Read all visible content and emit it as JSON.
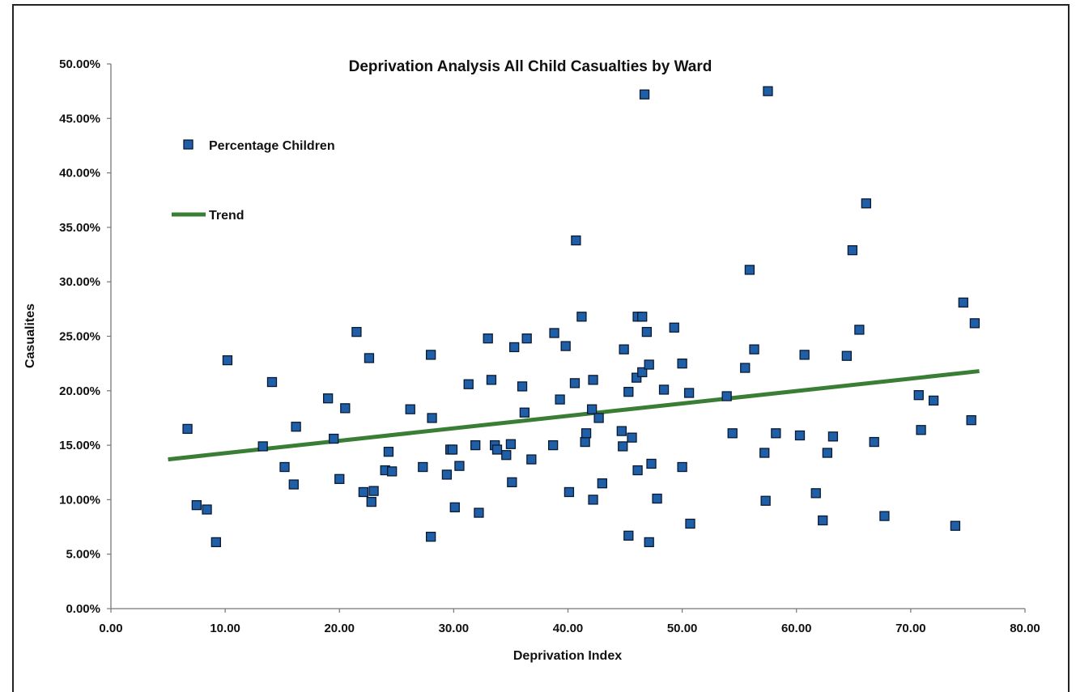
{
  "chart_data": {
    "type": "scatter",
    "title": "Deprivation Analysis All Child Casualties by Ward",
    "xlabel": "Deprivation Index",
    "ylabel": "Casualites",
    "xlim": [
      0,
      80
    ],
    "ylim": [
      0,
      0.5
    ],
    "x_ticks": [
      "0.00",
      "10.00",
      "20.00",
      "30.00",
      "40.00",
      "50.00",
      "60.00",
      "70.00",
      "80.00"
    ],
    "y_ticks": [
      "0.00%",
      "5.00%",
      "10.00%",
      "15.00%",
      "20.00%",
      "25.00%",
      "30.00%",
      "35.00%",
      "40.00%",
      "45.00%",
      "50.00%"
    ],
    "grid": false,
    "legend_position": "top-left",
    "colors": {
      "points": "#1f5fa8",
      "point_border": "#0a1a33",
      "trend": "#3a7d35"
    },
    "series": [
      {
        "name": "Percentage Children",
        "kind": "points",
        "points": [
          [
            6.7,
            0.165
          ],
          [
            7.5,
            0.095
          ],
          [
            8.4,
            0.091
          ],
          [
            9.2,
            0.061
          ],
          [
            10.2,
            0.228
          ],
          [
            13.3,
            0.149
          ],
          [
            14.1,
            0.208
          ],
          [
            15.2,
            0.13
          ],
          [
            16.0,
            0.114
          ],
          [
            16.2,
            0.167
          ],
          [
            19.0,
            0.193
          ],
          [
            19.5,
            0.156
          ],
          [
            20.0,
            0.119
          ],
          [
            20.5,
            0.184
          ],
          [
            21.5,
            0.254
          ],
          [
            22.1,
            0.107
          ],
          [
            22.6,
            0.23
          ],
          [
            22.8,
            0.098
          ],
          [
            23.0,
            0.108
          ],
          [
            24.0,
            0.127
          ],
          [
            24.3,
            0.144
          ],
          [
            24.6,
            0.126
          ],
          [
            26.2,
            0.183
          ],
          [
            27.3,
            0.13
          ],
          [
            28.0,
            0.233
          ],
          [
            28.1,
            0.175
          ],
          [
            28.0,
            0.066
          ],
          [
            29.4,
            0.123
          ],
          [
            29.7,
            0.146
          ],
          [
            29.9,
            0.146
          ],
          [
            30.1,
            0.093
          ],
          [
            30.5,
            0.131
          ],
          [
            31.3,
            0.206
          ],
          [
            31.9,
            0.15
          ],
          [
            32.2,
            0.088
          ],
          [
            33.0,
            0.248
          ],
          [
            33.3,
            0.21
          ],
          [
            33.6,
            0.15
          ],
          [
            33.8,
            0.146
          ],
          [
            34.6,
            0.141
          ],
          [
            35.0,
            0.151
          ],
          [
            35.1,
            0.116
          ],
          [
            35.3,
            0.24
          ],
          [
            36.0,
            0.204
          ],
          [
            36.2,
            0.18
          ],
          [
            36.4,
            0.248
          ],
          [
            36.8,
            0.137
          ],
          [
            38.7,
            0.15
          ],
          [
            38.8,
            0.253
          ],
          [
            39.3,
            0.192
          ],
          [
            39.8,
            0.241
          ],
          [
            40.1,
            0.107
          ],
          [
            40.6,
            0.207
          ],
          [
            40.7,
            0.338
          ],
          [
            41.2,
            0.268
          ],
          [
            41.5,
            0.153
          ],
          [
            41.6,
            0.161
          ],
          [
            42.1,
            0.183
          ],
          [
            42.2,
            0.21
          ],
          [
            42.2,
            0.1
          ],
          [
            42.7,
            0.175
          ],
          [
            43.0,
            0.115
          ],
          [
            44.7,
            0.163
          ],
          [
            44.8,
            0.149
          ],
          [
            44.9,
            0.238
          ],
          [
            45.3,
            0.199
          ],
          [
            45.3,
            0.067
          ],
          [
            45.6,
            0.157
          ],
          [
            46.0,
            0.212
          ],
          [
            46.1,
            0.268
          ],
          [
            46.1,
            0.127
          ],
          [
            46.5,
            0.268
          ],
          [
            46.5,
            0.217
          ],
          [
            46.7,
            0.472
          ],
          [
            46.9,
            0.254
          ],
          [
            47.1,
            0.224
          ],
          [
            47.1,
            0.061
          ],
          [
            47.3,
            0.133
          ],
          [
            47.8,
            0.101
          ],
          [
            48.4,
            0.201
          ],
          [
            49.3,
            0.258
          ],
          [
            50.0,
            0.225
          ],
          [
            50.0,
            0.13
          ],
          [
            50.6,
            0.198
          ],
          [
            50.7,
            0.078
          ],
          [
            53.9,
            0.195
          ],
          [
            54.4,
            0.161
          ],
          [
            55.5,
            0.221
          ],
          [
            55.9,
            0.311
          ],
          [
            56.3,
            0.238
          ],
          [
            57.2,
            0.143
          ],
          [
            57.3,
            0.099
          ],
          [
            57.5,
            0.475
          ],
          [
            58.2,
            0.161
          ],
          [
            60.3,
            0.159
          ],
          [
            60.7,
            0.233
          ],
          [
            61.7,
            0.106
          ],
          [
            62.3,
            0.081
          ],
          [
            62.7,
            0.143
          ],
          [
            63.2,
            0.158
          ],
          [
            64.4,
            0.232
          ],
          [
            64.9,
            0.329
          ],
          [
            65.5,
            0.256
          ],
          [
            66.1,
            0.372
          ],
          [
            66.8,
            0.153
          ],
          [
            67.7,
            0.085
          ],
          [
            70.7,
            0.196
          ],
          [
            70.9,
            0.164
          ],
          [
            72.0,
            0.191
          ],
          [
            73.9,
            0.076
          ],
          [
            74.6,
            0.281
          ],
          [
            75.3,
            0.173
          ],
          [
            75.6,
            0.262
          ]
        ]
      },
      {
        "name": "Trend",
        "kind": "line",
        "points": [
          [
            5,
            0.137
          ],
          [
            76,
            0.218
          ]
        ]
      }
    ]
  }
}
